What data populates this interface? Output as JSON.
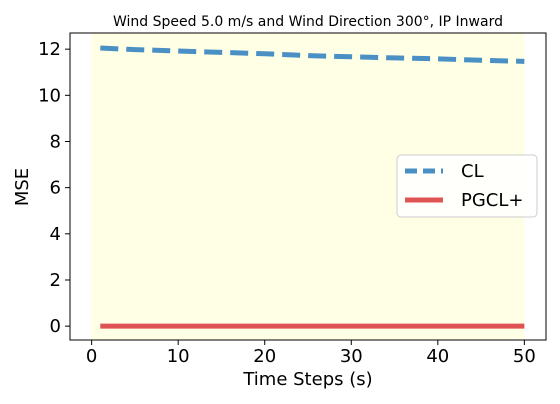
{
  "chart_data": {
    "type": "line",
    "title": "Wind Speed 5.0 m/s and Wind Direction 300°, IP Inward",
    "xlabel": "Time Steps (s)",
    "ylabel": "MSE",
    "xlim": [
      -2.5,
      52.5
    ],
    "ylim": [
      -0.6,
      12.7
    ],
    "xticks": [
      0,
      10,
      20,
      30,
      40,
      50
    ],
    "yticks": [
      0,
      2,
      4,
      6,
      8,
      10,
      12
    ],
    "grid": false,
    "legend_position": "center-right",
    "shaded_region": {
      "x0": 0,
      "x1": 50,
      "color": "#ffffe6"
    },
    "series": [
      {
        "name": "CL",
        "color": "#4a90c4",
        "style": "dashed",
        "x": [
          1,
          5,
          10,
          15,
          20,
          25,
          30,
          35,
          40,
          45,
          50
        ],
        "y": [
          12.05,
          11.98,
          11.92,
          11.86,
          11.8,
          11.72,
          11.67,
          11.62,
          11.58,
          11.52,
          11.47
        ]
      },
      {
        "name": "PGCL+",
        "color": "#e05353",
        "style": "solid",
        "x": [
          1,
          5,
          10,
          15,
          20,
          25,
          30,
          35,
          40,
          45,
          50
        ],
        "y": [
          0,
          0,
          0,
          0,
          0,
          0,
          0,
          0,
          0,
          0,
          0
        ]
      }
    ]
  }
}
